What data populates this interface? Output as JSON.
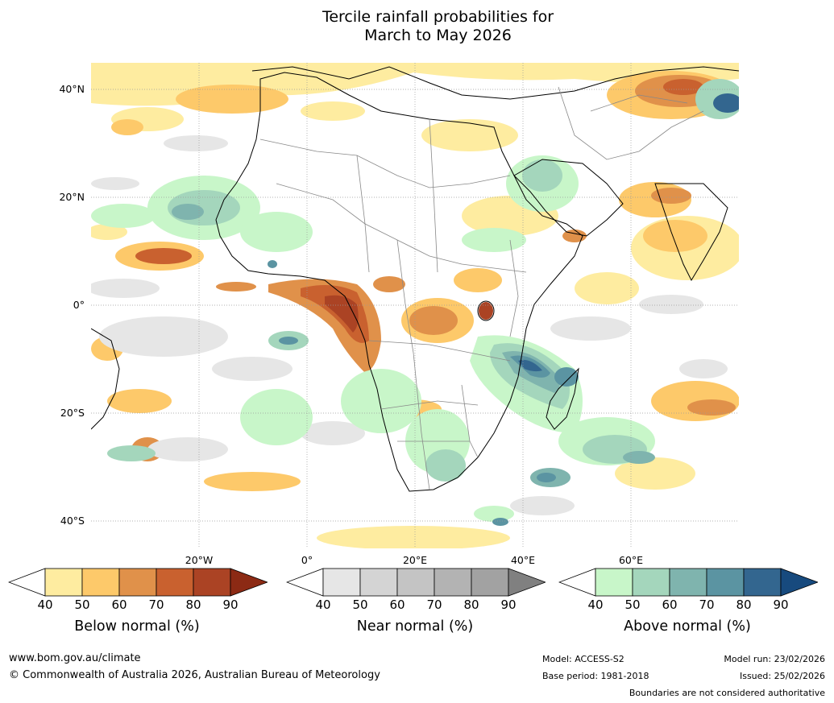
{
  "title": {
    "line1": "Tercile rainfall probabilities for",
    "line2": "March to May 2026"
  },
  "map": {
    "lat_labels": [
      "40°N",
      "20°N",
      "0°",
      "20°S",
      "40°S"
    ],
    "lon_labels": [
      "20°W",
      "0°",
      "20°E",
      "40°E",
      "60°E"
    ]
  },
  "legends": [
    {
      "label": "Below normal (%)",
      "ticks": [
        "40",
        "50",
        "60",
        "70",
        "80",
        "90"
      ],
      "colors": [
        "#ffffff",
        "#feeca0",
        "#fdc96a",
        "#e0914a",
        "#c9612f",
        "#ab4324",
        "#8c2a14"
      ]
    },
    {
      "label": "Near normal (%)",
      "ticks": [
        "40",
        "50",
        "60",
        "70",
        "80",
        "90"
      ],
      "colors": [
        "#ffffff",
        "#e6e6e6",
        "#d4d4d4",
        "#c4c4c4",
        "#b3b3b3",
        "#a2a2a2",
        "#808080"
      ]
    },
    {
      "label": "Above normal (%)",
      "ticks": [
        "40",
        "50",
        "60",
        "70",
        "80",
        "90"
      ],
      "colors": [
        "#ffffff",
        "#c8f6c9",
        "#a4d6bc",
        "#7fb4ae",
        "#5b94a2",
        "#33668f",
        "#174a7e"
      ]
    }
  ],
  "footer": {
    "website": "www.bom.gov.au/climate",
    "copyright": "© Commonwealth of Australia 2026, Australian Bureau of Meteorology",
    "model": "Model: ACCESS-S2",
    "base_period": "Base period: 1981-2018",
    "model_run": "Model run: 23/02/2026",
    "issued": "Issued: 25/02/2026",
    "disclaimer": "Boundaries are not considered authoritative"
  }
}
